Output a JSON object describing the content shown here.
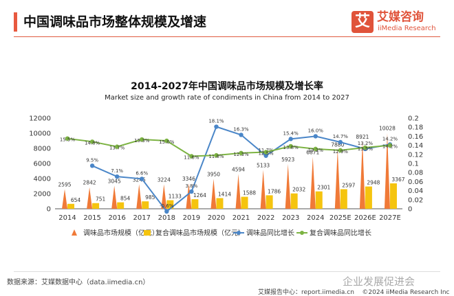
{
  "header": {
    "title": "中国调味品市场整体规模及增速"
  },
  "brand": {
    "icon_char": "艾",
    "name_cn": "艾媒咨询",
    "name_en": "iiMedia Research",
    "color": "#e0533a"
  },
  "chart_data": {
    "type": "bar",
    "title": "2014-2027年中国调味品市场规模及增长率",
    "subtitle": "Market size and growth rate of condiments in China from 2014 to 2027",
    "categories": [
      "2014",
      "2015",
      "2016",
      "2017",
      "2018",
      "2019",
      "2020",
      "2021",
      "2022",
      "2023",
      "2024",
      "2025E",
      "2026E",
      "2027E"
    ],
    "left_axis": {
      "min": 0,
      "max": 12000,
      "ticks": [
        "0",
        "2000",
        "4000",
        "6000",
        "8000",
        "10000",
        "12000"
      ]
    },
    "right_axis": {
      "min": 0,
      "max": 0.2,
      "ticks": [
        "0",
        "0.02",
        "0.04",
        "0.06",
        "0.08",
        "0.1",
        "0.12",
        "0.14",
        "0.16",
        "0.18",
        "0.2"
      ]
    },
    "series": [
      {
        "name": "调味品市场规模（亿元）",
        "kind": "bar",
        "color": "#f07a38",
        "values": [
          2595,
          2842,
          3045,
          3245,
          3224,
          3346,
          3950,
          4594,
          5133,
          5923,
          6871,
          7880,
          8921,
          10028
        ]
      },
      {
        "name": "复合调味品市场规模（亿元）",
        "kind": "bar",
        "color": "#f5c40f",
        "values": [
          654,
          751,
          854,
          985,
          1133,
          1264,
          1414,
          1588,
          1786,
          2032,
          2301,
          2597,
          2948,
          3367
        ]
      },
      {
        "name": "调味品同比增长",
        "kind": "line",
        "color": "#4a86c8",
        "values": [
          null,
          0.095,
          0.071,
          0.066,
          -0.006,
          0.038,
          0.181,
          0.163,
          0.117,
          0.154,
          0.16,
          0.147,
          0.132,
          0.142
        ],
        "labels": [
          "",
          "9.5%",
          "7.1%",
          "6.6%",
          "-0.6%",
          "3.8%",
          "18.1%",
          "16.3%",
          "11.7%",
          "15.4%",
          "16.0%",
          "14.7%",
          "13.2%",
          "14.2%"
        ]
      },
      {
        "name": "复合调味品同比增长",
        "kind": "line",
        "color": "#7cb342",
        "values": [
          0.155,
          0.148,
          0.137,
          0.153,
          0.15,
          0.116,
          0.118,
          0.123,
          0.125,
          0.138,
          0.132,
          0.129,
          0.135,
          0.14
        ],
        "labels": [
          "15.5%",
          "14.8%",
          "13.7%",
          "15.3%",
          "15.0%",
          "11.6%",
          "11.8%",
          "12.3%",
          "12.5%",
          "13.8%",
          "13.2%",
          "12.9%",
          "13.5%",
          "14.2%"
        ]
      }
    ]
  },
  "footer": {
    "source": "数据来源：艾媒数据中心（data.iimedia.cn）",
    "report": "艾媒报告中心：report.iimedia.cn",
    "copyright": "©2024  iiMedia Research  Inc",
    "watermark": "企业发展促进会"
  }
}
